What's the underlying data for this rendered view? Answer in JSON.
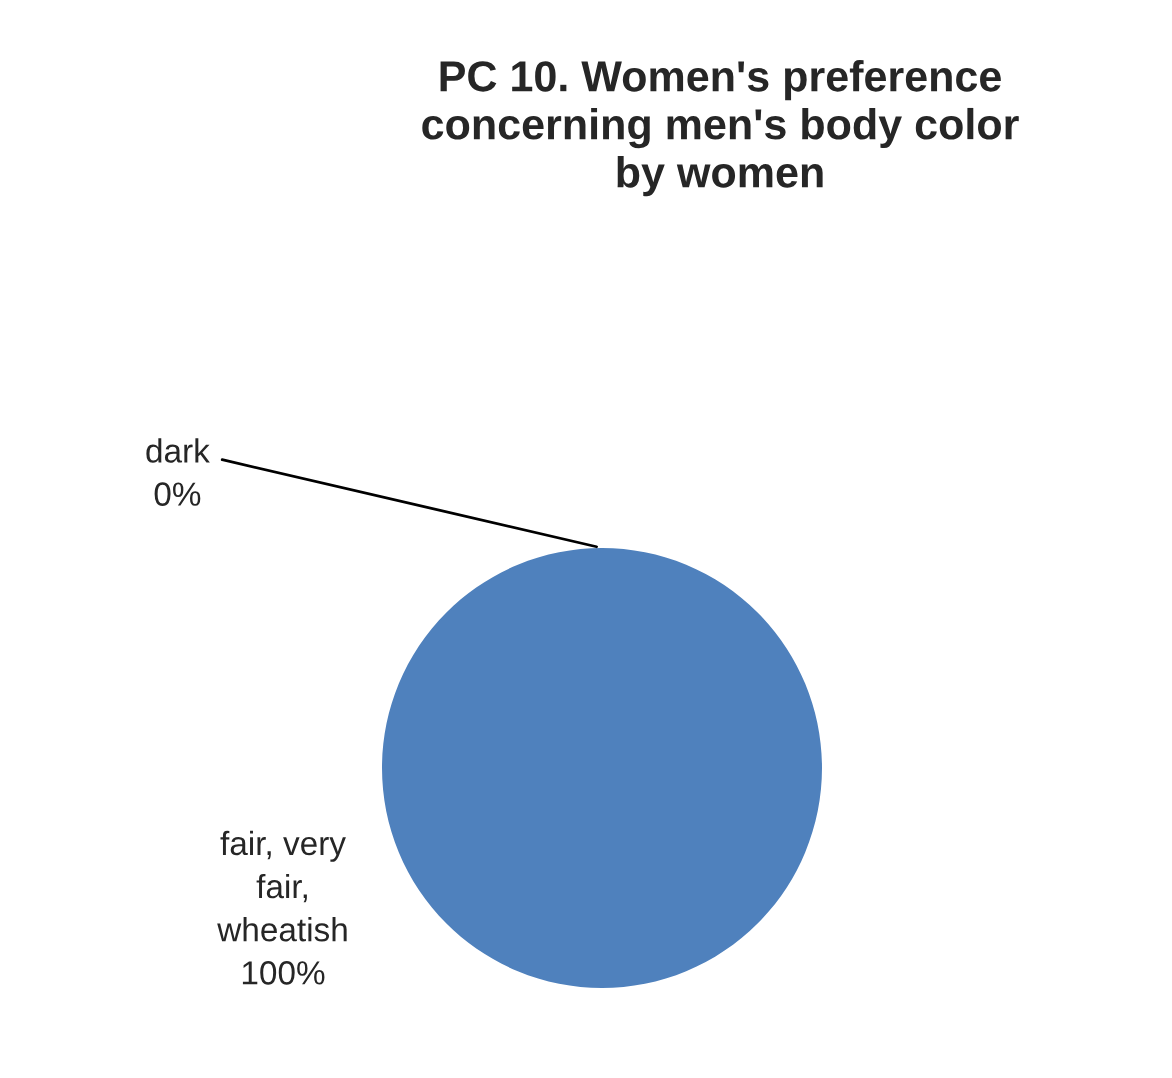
{
  "chart_data": {
    "type": "pie",
    "title": "PC 10. Women's preference\nconcerning men's body color\nby women",
    "categories": [
      "dark",
      "fair, very\nfair,\nwheatish"
    ],
    "values": [
      0,
      100
    ],
    "value_labels": [
      "0%",
      "100%"
    ],
    "colors": [
      "#c0504d",
      "#4f81bd"
    ],
    "legend": false
  }
}
